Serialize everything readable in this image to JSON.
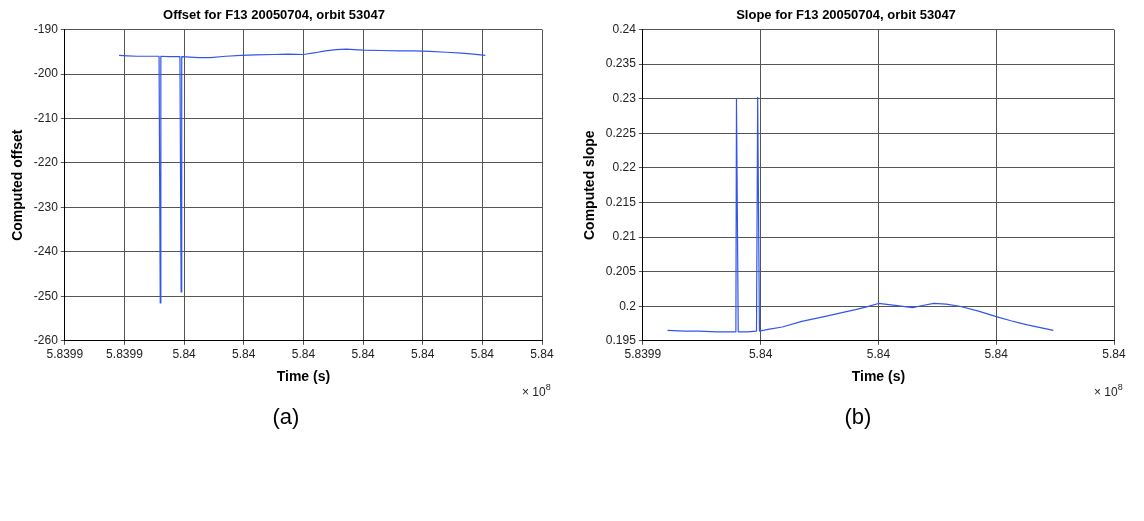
{
  "chart_data": [
    {
      "type": "line",
      "title": "Offset for F13 20050704, orbit 53047",
      "xlabel": "Time (s)",
      "ylabel": "Computed offset",
      "series": [
        {
          "color": "#3355ee",
          "x": [
            5.8399391,
            5.8399405,
            5.8399421,
            5.839944,
            5.8399458,
            5.839946,
            5.8399461,
            5.8399475,
            5.8399493,
            5.8399495,
            5.8399496,
            5.839951,
            5.8399525,
            5.8399544,
            5.839957,
            5.8399596,
            5.839962,
            5.8399649,
            5.8399675,
            5.83997,
            5.839972,
            5.8399737,
            5.8399755,
            5.8399772,
            5.8399785,
            5.83998,
            5.839983,
            5.839986,
            5.8399885,
            5.8399912,
            5.839994,
            5.8399965,
            5.8399985,
            5.8400005
          ],
          "values": [
            -195.8,
            -195.9,
            -196.0,
            -196.0,
            -196.0,
            -251.5,
            -196.0,
            -196.1,
            -196.1,
            -249.0,
            -196.1,
            -196.2,
            -196.3,
            -196.3,
            -196.0,
            -195.8,
            -195.7,
            -195.6,
            -195.5,
            -195.6,
            -195.2,
            -194.8,
            -194.5,
            -194.4,
            -194.5,
            -194.6,
            -194.7,
            -194.8,
            -194.8,
            -194.9,
            -195.1,
            -195.3,
            -195.5,
            -195.8
          ]
        }
      ],
      "xlim": [
        5.83993,
        5.84001
      ],
      "ylim": [
        -260,
        -190
      ],
      "xticks": [
        {
          "value": 5.83993,
          "label": "5.8399"
        },
        {
          "value": 5.83994,
          "label": "5.8399"
        },
        {
          "value": 5.83995,
          "label": "5.84"
        },
        {
          "value": 5.83996,
          "label": "5.84"
        },
        {
          "value": 5.83997,
          "label": "5.84"
        },
        {
          "value": 5.83998,
          "label": "5.84"
        },
        {
          "value": 5.83999,
          "label": "5.84"
        },
        {
          "value": 5.84,
          "label": "5.84"
        },
        {
          "value": 5.84001,
          "label": "5.84"
        }
      ],
      "yticks": [
        -260,
        -250,
        -240,
        -230,
        -220,
        -210,
        -200,
        -190
      ],
      "grid": true,
      "legend": false,
      "marker": "none",
      "line_style": "solid",
      "annotations": [
        "× 10$^{8}$",
        "(a)"
      ]
    },
    {
      "type": "line",
      "title": "Slope for F13 20050704, orbit 53047",
      "xlabel": "Time (s)",
      "ylabel": "Computed slope",
      "series": [
        {
          "color": "#3355ee",
          "x": [
            5.8399342,
            5.839937,
            5.8399396,
            5.8399425,
            5.8399458,
            5.8399459,
            5.8399462,
            5.8399478,
            5.8399493,
            5.8399495,
            5.8399498,
            5.8399515,
            5.8399537,
            5.839957,
            5.8399608,
            5.839964,
            5.8399661,
            5.839968,
            5.83997,
            5.8399732,
            5.8399758,
            5.8399775,
            5.8399794,
            5.8399815,
            5.8399838,
            5.839987,
            5.83999,
            5.8399925,
            5.8399953,
            5.8399975,
            5.8399997
          ],
          "values": [
            0.1965,
            0.1964,
            0.1964,
            0.1963,
            0.1963,
            0.23,
            0.1963,
            0.1963,
            0.1964,
            0.2302,
            0.1964,
            0.1967,
            0.197,
            0.1978,
            0.1985,
            0.1991,
            0.1995,
            0.1999,
            0.2004,
            0.2001,
            0.1998,
            0.2001,
            0.2004,
            0.2003,
            0.2,
            0.1993,
            0.1985,
            0.1979,
            0.1973,
            0.1969,
            0.1965
          ]
        }
      ],
      "xlim": [
        5.83993,
        5.84001
      ],
      "ylim": [
        0.195,
        0.24
      ],
      "xticks": [
        {
          "value": 5.83993,
          "label": "5.8399"
        },
        {
          "value": 5.83995,
          "label": "5.84"
        },
        {
          "value": 5.83997,
          "label": "5.84"
        },
        {
          "value": 5.83999,
          "label": "5.84"
        },
        {
          "value": 5.84001,
          "label": "5.84"
        }
      ],
      "yticks": [
        0.195,
        0.2,
        0.205,
        0.21,
        0.215,
        0.22,
        0.225,
        0.23,
        0.235,
        0.24
      ],
      "grid": true,
      "legend": false,
      "marker": "none",
      "line_style": "solid",
      "annotations": [
        "× 10$^{8}$",
        "(b)"
      ]
    }
  ]
}
